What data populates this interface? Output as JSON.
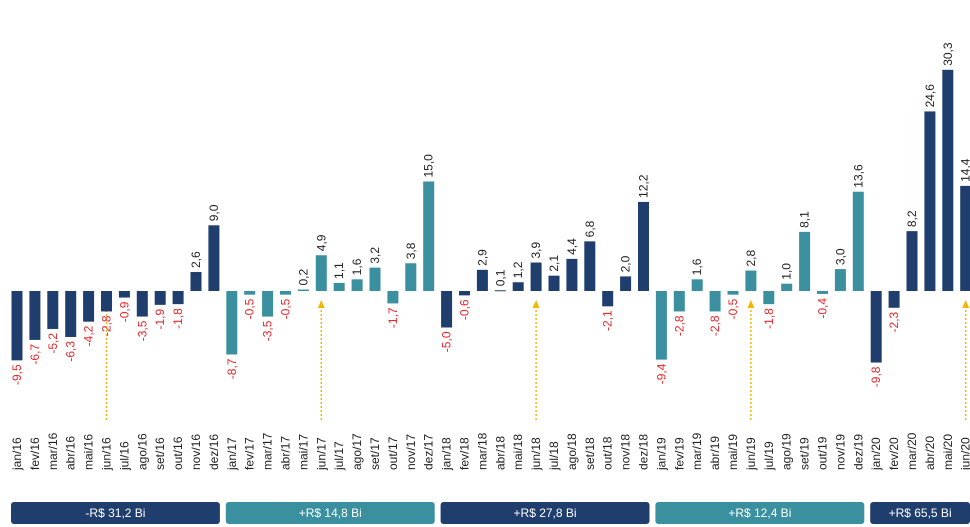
{
  "chart_data": {
    "type": "bar",
    "categories": [
      "jan/16",
      "fev/16",
      "mar/16",
      "abr/16",
      "mai/16",
      "jun/16",
      "jul/16",
      "ago/16",
      "set/16",
      "out/16",
      "nov/16",
      "dez/16",
      "jan/17",
      "fev/17",
      "mar/17",
      "abr/17",
      "mai/17",
      "jun/17",
      "jul/17",
      "ago/17",
      "set/17",
      "out/17",
      "nov/17",
      "dez/17",
      "jan/18",
      "fev/18",
      "mar/18",
      "abr/18",
      "mai/18",
      "jun/18",
      "jul/18",
      "ago/18",
      "set/18",
      "out/18",
      "nov/18",
      "dez/18",
      "jan/19",
      "fev/19",
      "mar/19",
      "abr/19",
      "mai/19",
      "jun/19",
      "jul/19",
      "ago/19",
      "set/19",
      "out/19",
      "nov/19",
      "dez/19",
      "jan/20",
      "fev/20",
      "mar/20",
      "abr/20",
      "mai/20",
      "jun/20"
    ],
    "values": [
      -9.5,
      -6.7,
      -5.2,
      -6.3,
      -4.2,
      -2.8,
      -0.9,
      -3.5,
      -1.9,
      -1.8,
      2.6,
      9.0,
      -8.7,
      -0.5,
      -3.5,
      -0.5,
      0.2,
      4.9,
      1.1,
      1.6,
      3.2,
      -1.7,
      3.8,
      15.0,
      -5.0,
      -0.6,
      2.9,
      0.1,
      1.2,
      3.9,
      2.1,
      4.4,
      6.8,
      -2.1,
      2.0,
      12.2,
      -9.4,
      -2.8,
      1.6,
      -2.8,
      -0.5,
      2.8,
      -1.8,
      1.0,
      8.1,
      -0.4,
      3.0,
      13.6,
      -9.8,
      -2.3,
      8.2,
      24.6,
      30.3,
      14.4
    ],
    "value_labels": [
      "-9,5",
      "-6,7",
      "-5,2",
      "-6,3",
      "-4,2",
      "-2,8",
      "-0,9",
      "-3,5",
      "-1,9",
      "-1,8",
      "2,6",
      "9,0",
      "-8,7",
      "-0,5",
      "-3,5",
      "-0,5",
      "0,2",
      "4,9",
      "1,1",
      "1,6",
      "3,2",
      "-1,7",
      "3,8",
      "15,0",
      "-5,0",
      "-0,6",
      "2,9",
      "0,1",
      "1,2",
      "3,9",
      "2,1",
      "4,4",
      "6,8",
      "-2,1",
      "2,0",
      "12,2",
      "-9,4",
      "-2,8",
      "1,6",
      "-2,8",
      "-0,5",
      "2,8",
      "-1,8",
      "1,0",
      "8,1",
      "-0,4",
      "3,0",
      "13,6",
      "-9,8",
      "-2,3",
      "8,2",
      "24,6",
      "30,3",
      "14,4"
    ],
    "positive_label_color": "#222222",
    "negative_label_color": "#e8262b",
    "groups": [
      {
        "label": "-R$ 31,2 Bi",
        "color": "#1f3e6e"
      },
      {
        "label": "+R$ 14,8 Bi",
        "color": "#3b909f"
      },
      {
        "label": "+R$ 27,8 Bi",
        "color": "#1f3e6e"
      },
      {
        "label": "+R$ 12,4 Bi",
        "color": "#3b909f"
      },
      {
        "label": "+R$ 65,5 Bi",
        "color": "#1f3e6e"
      }
    ]
  }
}
